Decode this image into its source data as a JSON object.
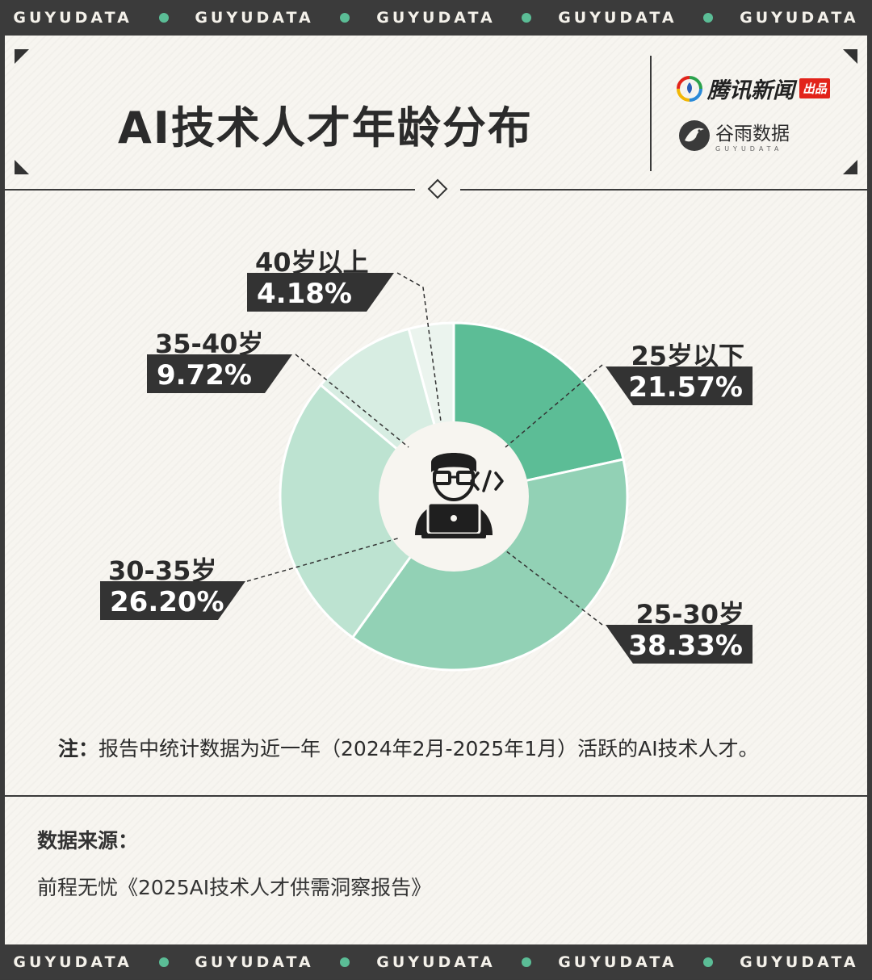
{
  "band_text": "GUYUDATA",
  "title": "AI技术人才年龄分布",
  "brand": {
    "tencent_name": "腾讯新闻",
    "tencent_badge": "出品",
    "guyu_name": "谷雨数据",
    "guyu_sub": "GUYUDATA"
  },
  "chart_data": {
    "type": "pie",
    "style": "donut",
    "title": "AI技术人才年龄分布",
    "slices": [
      {
        "label": "25岁以下",
        "value": 21.57,
        "display": "21.57%",
        "color": "#5cbd96"
      },
      {
        "label": "25-30岁",
        "value": 38.33,
        "display": "38.33%",
        "color": "#92d1b5"
      },
      {
        "label": "30-35岁",
        "value": 26.2,
        "display": "26.20%",
        "color": "#bde3d1"
      },
      {
        "label": "35-40岁",
        "value": 9.72,
        "display": "9.72%",
        "color": "#d7ede2"
      },
      {
        "label": "40岁以上",
        "value": 4.18,
        "display": "4.18%",
        "color": "#ebf4ee"
      }
    ],
    "colors": {
      "label_box": "#333333",
      "label_text": "#ffffff",
      "center": "#f7f5f0"
    }
  },
  "note": {
    "prefix": "注：",
    "text": "报告中统计数据为近一年（2024年2月-2025年1月）活跃的AI技术人才。"
  },
  "source": {
    "label": "数据来源：",
    "text": "前程无忧《2025AI技术人才供需洞察报告》"
  },
  "icons": [
    "programmer-icon",
    "code-icon",
    "tencent-logo-icon",
    "guyu-logo-icon"
  ]
}
